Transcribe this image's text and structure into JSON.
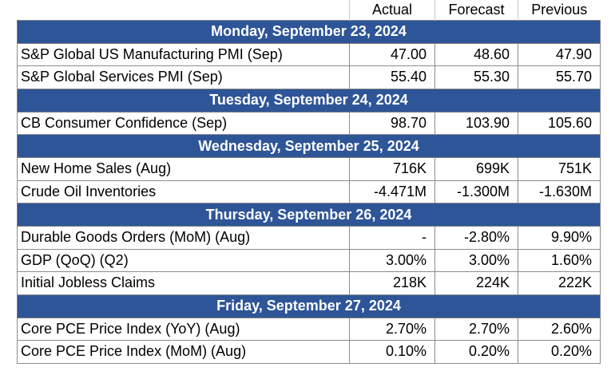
{
  "columns": {
    "actual": "Actual",
    "forecast": "Forecast",
    "previous": "Previous"
  },
  "days": [
    {
      "date": "Monday, September 23, 2024",
      "events": [
        {
          "name": "S&P Global US Manufacturing PMI (Sep)",
          "actual": "47.00",
          "forecast": "48.60",
          "previous": "47.90"
        },
        {
          "name": "S&P Global Services PMI (Sep)",
          "actual": "55.40",
          "forecast": "55.30",
          "previous": "55.70"
        }
      ]
    },
    {
      "date": "Tuesday, September 24, 2024",
      "events": [
        {
          "name": "CB Consumer Confidence (Sep)",
          "actual": "98.70",
          "forecast": "103.90",
          "previous": "105.60"
        }
      ]
    },
    {
      "date": "Wednesday, September 25, 2024",
      "events": [
        {
          "name": "New Home Sales (Aug)",
          "actual": "716K",
          "forecast": "699K",
          "previous": "751K"
        },
        {
          "name": "Crude Oil Inventories",
          "actual": "-4.471M",
          "forecast": "-1.300M",
          "previous": "-1.630M"
        }
      ]
    },
    {
      "date": "Thursday, September 26, 2024",
      "events": [
        {
          "name": "Durable Goods Orders (MoM) (Aug)",
          "actual": "-",
          "forecast": "-2.80%",
          "previous": "9.90%"
        },
        {
          "name": "GDP (QoQ) (Q2)",
          "actual": "3.00%",
          "forecast": "3.00%",
          "previous": "1.60%"
        },
        {
          "name": "Initial Jobless Claims",
          "actual": "218K",
          "forecast": "224K",
          "previous": "222K"
        }
      ]
    },
    {
      "date": "Friday, September 27, 2024",
      "events": [
        {
          "name": "Core PCE Price Index (YoY) (Aug)",
          "actual": "2.70%",
          "forecast": "2.70%",
          "previous": "2.60%"
        },
        {
          "name": "Core PCE Price Index (MoM) (Aug)",
          "actual": "0.10%",
          "forecast": "0.20%",
          "previous": "0.20%"
        }
      ]
    }
  ],
  "colors": {
    "day_header_bg": "#2e5597",
    "day_header_text": "#ffffff",
    "border": "#8c8c8c"
  }
}
